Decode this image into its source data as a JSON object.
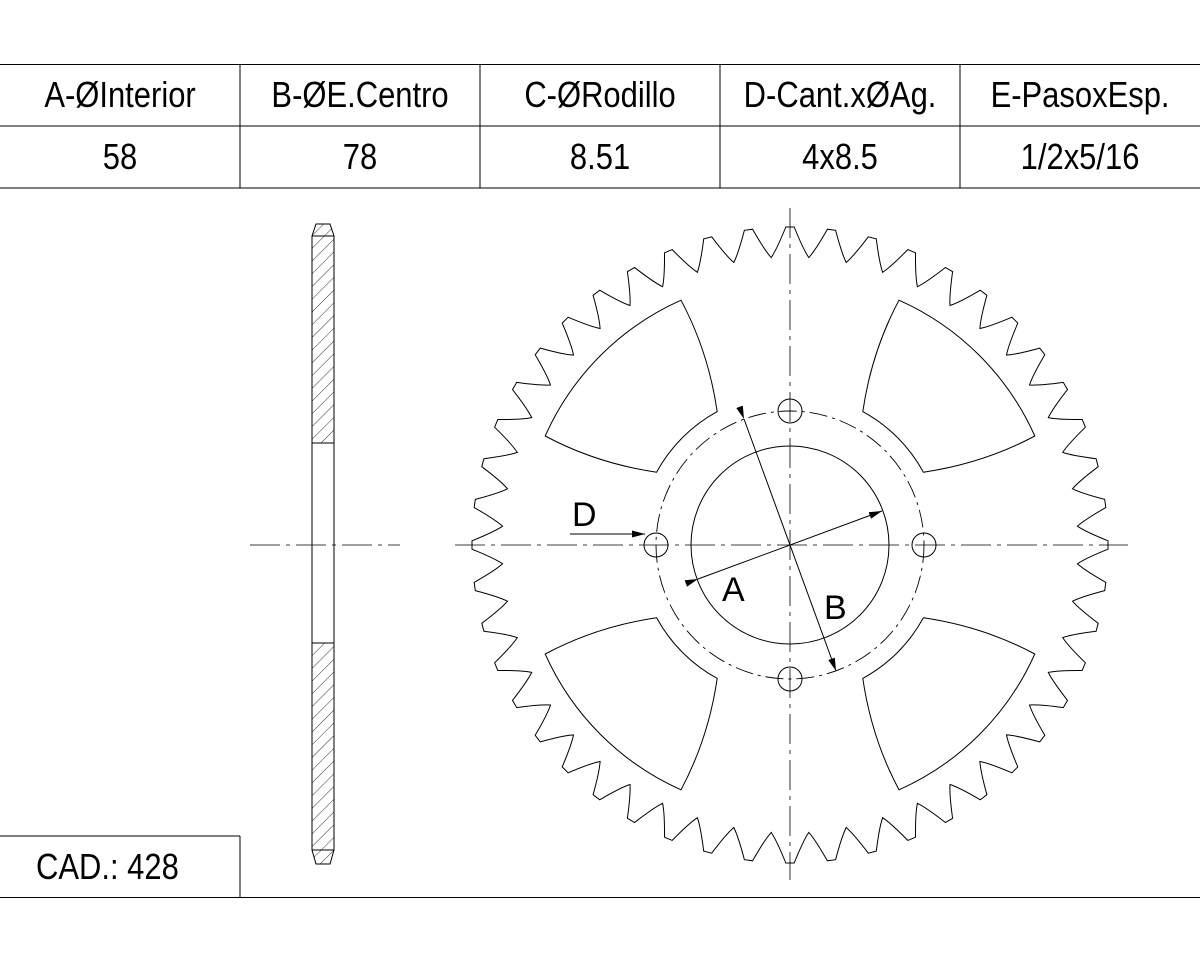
{
  "table": {
    "headers": [
      "A-ØInterior",
      "B-ØE.Centro",
      "C-ØRodillo",
      "D-Cant.xØAg.",
      "E-PasoxEsp."
    ],
    "values": [
      "58",
      "78",
      "8.51",
      "4x8.5",
      "1/2x5/16"
    ]
  },
  "cad": {
    "label": "CAD.: 428"
  },
  "drawing": {
    "labels": {
      "a": "A",
      "b": "B",
      "d": "D"
    },
    "teeth": 48,
    "bolt_holes": 4,
    "lightening_holes": 4
  }
}
